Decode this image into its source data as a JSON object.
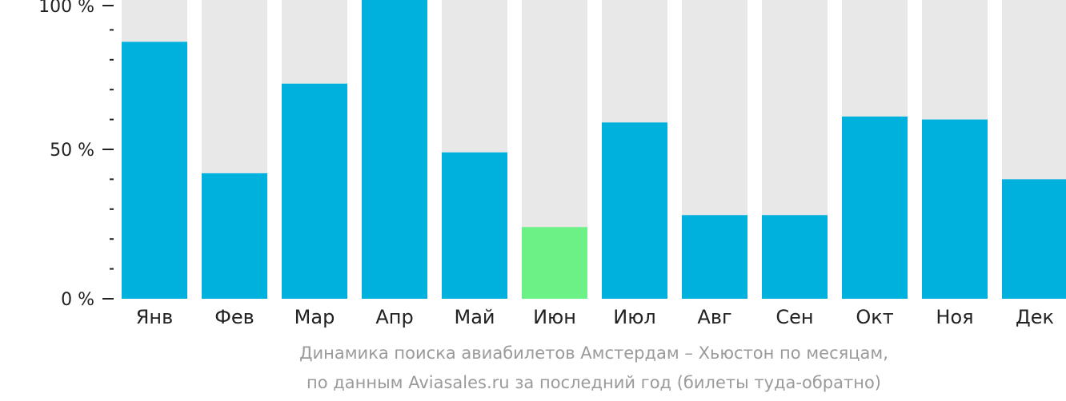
{
  "chart_data": {
    "type": "bar",
    "categories": [
      "Янв",
      "Фев",
      "Мар",
      "Апр",
      "Май",
      "Июн",
      "Июл",
      "Авг",
      "Сен",
      "Окт",
      "Ноя",
      "Дек"
    ],
    "values": [
      86,
      42,
      72,
      100,
      49,
      24,
      59,
      28,
      28,
      61,
      60,
      40
    ],
    "ylim": [
      0,
      100
    ],
    "y_ticks": [
      "0 %",
      "50 %",
      "100 %"
    ],
    "highlight_category": "Июн",
    "colors": {
      "bar": "#00b0dd",
      "highlight": "#6cf186",
      "track": "#e8e8e8",
      "axis": "#222222"
    },
    "caption_line1": "Динамика поиска авиабилетов Амстердам – Хьюстон по месяцам,",
    "caption_line2": "по данным Aviasales.ru за последний год (билеты туда-обратно)"
  }
}
